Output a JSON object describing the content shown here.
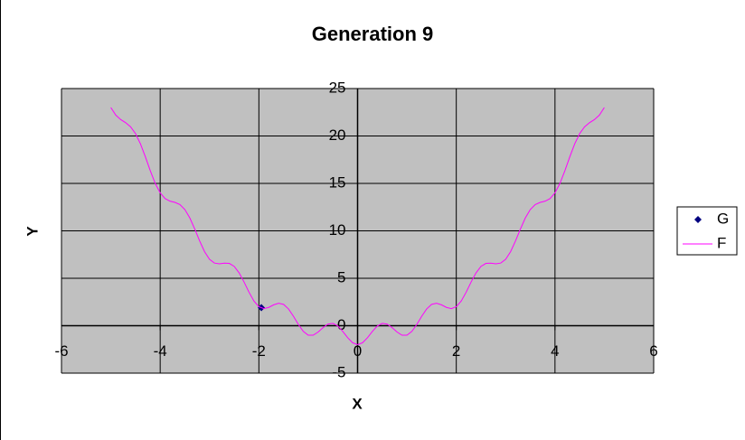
{
  "chart_data": {
    "type": "scatter",
    "title": "Generation 9",
    "x_label": "X",
    "y_label": "Y",
    "xlim": [
      -6,
      6
    ],
    "xticks": [
      -6,
      -4,
      -2,
      0,
      2,
      4,
      6
    ],
    "ylim": [
      -5,
      25
    ],
    "yticks": [
      -5,
      0,
      5,
      10,
      15,
      20,
      25
    ],
    "grid": true,
    "legend": "right",
    "series": [
      {
        "name": "G",
        "color": "#000080",
        "style": "marker",
        "x": [
          -1.95
        ],
        "values": [
          1.9
        ]
      },
      {
        "name": "F",
        "color": "#ff00ff",
        "style": "line",
        "x": [
          -5,
          -4.9,
          -4.8,
          -4.7,
          -4.6,
          -4.5,
          -4.4,
          -4.3,
          -4.2,
          -4.1,
          -4,
          -3.9,
          -3.8,
          -3.7,
          -3.6,
          -3.5,
          -3.4,
          -3.3,
          -3.2,
          -3.1,
          -3,
          -2.9,
          -2.8,
          -2.7,
          -2.6,
          -2.5,
          -2.4,
          -2.3,
          -2.2,
          -2.1,
          -2,
          -1.9,
          -1.8,
          -1.7,
          -1.6,
          -1.5,
          -1.4,
          -1.3,
          -1.2,
          -1.1,
          -1,
          -0.9,
          -0.8,
          -0.7,
          -0.6,
          -0.5,
          -0.4,
          -0.3,
          -0.2,
          -0.1,
          0,
          0.1,
          0.2,
          0.3,
          0.4,
          0.5,
          0.6,
          0.7,
          0.8,
          0.9,
          1,
          1.1,
          1.2,
          1.3,
          1.4,
          1.5,
          1.6,
          1.7,
          1.8,
          1.9,
          2,
          2.1,
          2.2,
          2.3,
          2.4,
          2.5,
          2.6,
          2.7,
          2.8,
          2.9,
          3,
          3.1,
          3.2,
          3.3,
          3.4,
          3.5,
          3.6,
          3.7,
          3.8,
          3.9,
          4,
          4.1,
          4.2,
          4.3,
          4.4,
          4.5,
          4.6,
          4.7,
          4.8,
          4.9,
          5
        ],
        "values": [
          23,
          22.2,
          21.73,
          21.4,
          20.97,
          20.25,
          19.17,
          17.8,
          16.33,
          15,
          14,
          13.4,
          13.13,
          13,
          12.77,
          12.25,
          11.37,
          10.2,
          8.93,
          7.8,
          7,
          6.6,
          6.53,
          6.6,
          6.57,
          6.25,
          5.57,
          4.6,
          3.53,
          2.6,
          2,
          1.8,
          1.93,
          2.2,
          2.37,
          2.25,
          1.77,
          1,
          0.13,
          -0.6,
          -1,
          -1,
          -0.67,
          -0.2,
          0.17,
          0.25,
          -0.03,
          -0.6,
          -1.27,
          -1.8,
          -2,
          -1.8,
          -1.27,
          -0.6,
          -0.03,
          0.25,
          0.17,
          -0.2,
          -0.67,
          -1,
          -1,
          -0.6,
          0.13,
          1,
          1.77,
          2.25,
          2.37,
          2.2,
          1.93,
          1.8,
          2,
          2.6,
          3.53,
          4.6,
          5.57,
          6.25,
          6.57,
          6.6,
          6.53,
          6.6,
          7,
          7.8,
          8.93,
          10.2,
          11.37,
          12.25,
          12.77,
          13,
          13.13,
          13.4,
          14,
          15,
          16.33,
          17.8,
          19.17,
          20.25,
          20.97,
          21.4,
          21.73,
          22.2,
          23
        ]
      }
    ]
  }
}
